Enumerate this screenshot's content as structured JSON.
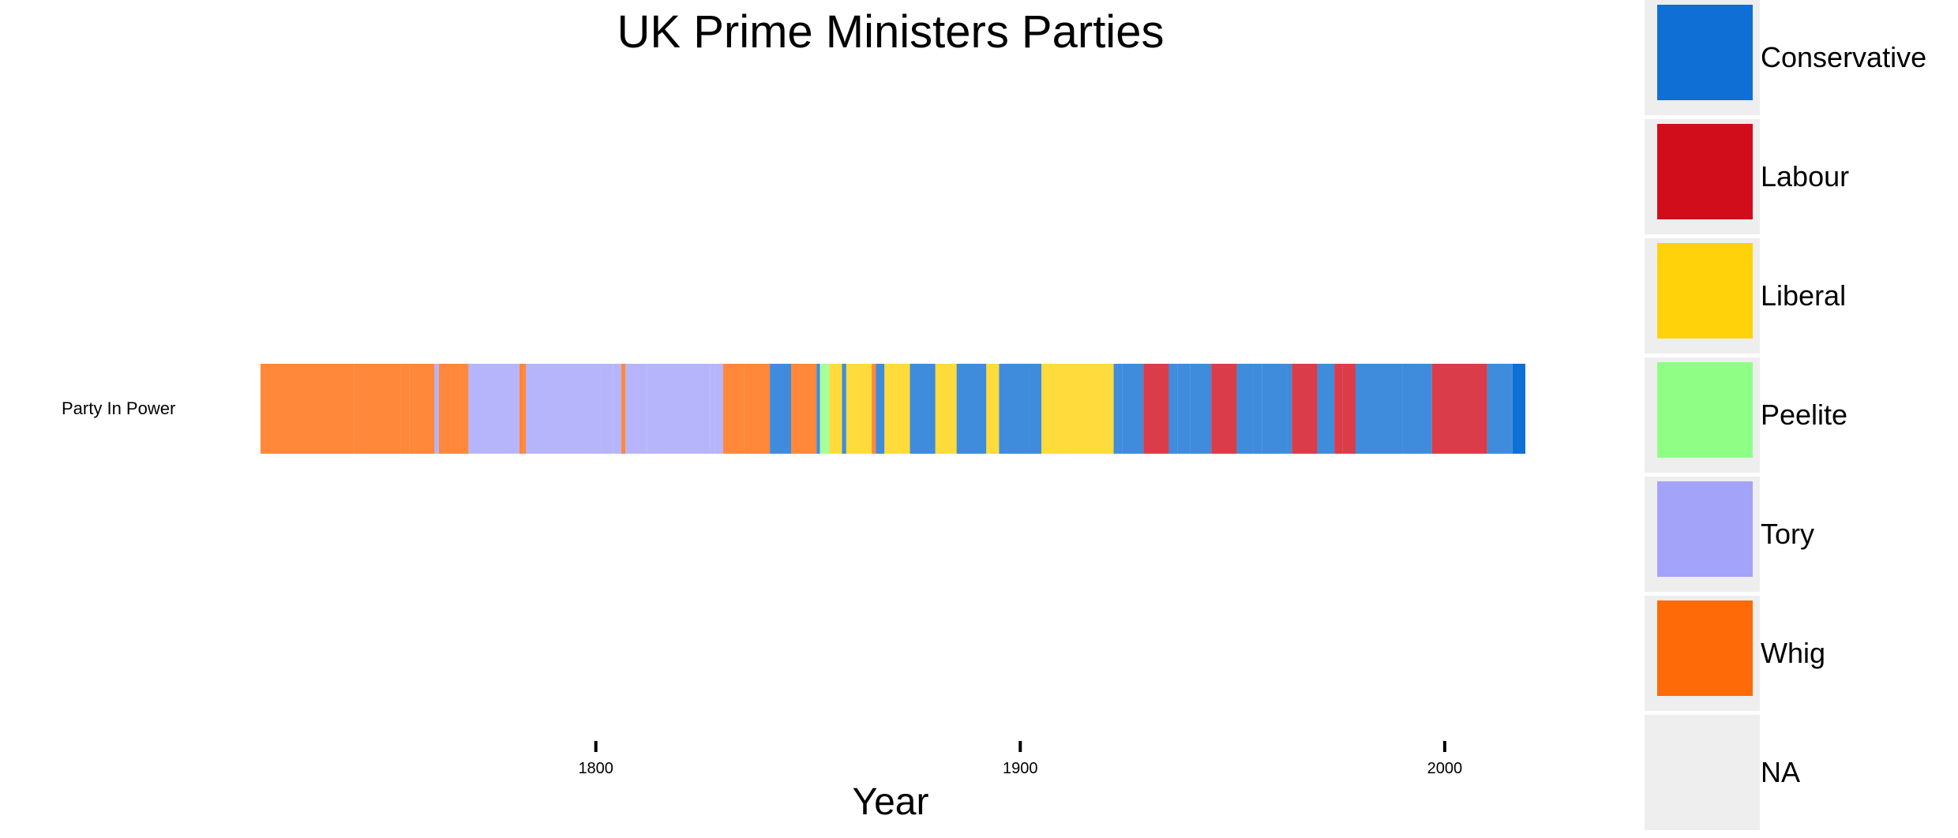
{
  "chart_data": {
    "type": "timeline",
    "title": "UK Prime Ministers Parties",
    "xlabel": "Year",
    "ylabel": "",
    "row_label": "Party In Power",
    "xlim": [
      1721,
      2019
    ],
    "x_ticks": [
      1800,
      1900,
      2000
    ],
    "x_tick_labels": [
      "1800",
      "1900",
      "2000"
    ],
    "grid": false,
    "legend_position": "right",
    "legend": [
      {
        "name": "Conservative",
        "color": "#0F6FD4"
      },
      {
        "name": "Labour",
        "color": "#D10D1C"
      },
      {
        "name": "Liberal",
        "color": "#FFD20A"
      },
      {
        "name": "Peelite",
        "color": "#8EFF84"
      },
      {
        "name": "Tory",
        "color": "#A4A3FA"
      },
      {
        "name": "Whig",
        "color": "#FF6A09"
      },
      {
        "name": "NA",
        "color": "#EEEEEE"
      }
    ],
    "bar_opacity": 0.8,
    "segments": [
      {
        "start": 1721,
        "end": 1743,
        "party": "Whig"
      },
      {
        "start": 1743,
        "end": 1754,
        "party": "Whig"
      },
      {
        "start": 1754,
        "end": 1756,
        "party": "Whig"
      },
      {
        "start": 1756,
        "end": 1757,
        "party": "Whig"
      },
      {
        "start": 1757,
        "end": 1762,
        "party": "Whig"
      },
      {
        "start": 1762,
        "end": 1763,
        "party": "Tory"
      },
      {
        "start": 1763,
        "end": 1765,
        "party": "Whig"
      },
      {
        "start": 1765,
        "end": 1766,
        "party": "Whig"
      },
      {
        "start": 1766,
        "end": 1768,
        "party": "Whig"
      },
      {
        "start": 1768,
        "end": 1770,
        "party": "Whig"
      },
      {
        "start": 1770,
        "end": 1782,
        "party": "Tory"
      },
      {
        "start": 1782,
        "end": 1783,
        "party": "Whig"
      },
      {
        "start": 1783,
        "end": 1783.5,
        "party": "Whig"
      },
      {
        "start": 1783.5,
        "end": 1801,
        "party": "Tory"
      },
      {
        "start": 1801,
        "end": 1804,
        "party": "Tory"
      },
      {
        "start": 1804,
        "end": 1806,
        "party": "Tory"
      },
      {
        "start": 1806,
        "end": 1807,
        "party": "Whig"
      },
      {
        "start": 1807,
        "end": 1809,
        "party": "Tory"
      },
      {
        "start": 1809,
        "end": 1812,
        "party": "Tory"
      },
      {
        "start": 1812,
        "end": 1827,
        "party": "Tory"
      },
      {
        "start": 1827,
        "end": 1828,
        "party": "Tory"
      },
      {
        "start": 1828,
        "end": 1830,
        "party": "Tory"
      },
      {
        "start": 1830,
        "end": 1834,
        "party": "Whig"
      },
      {
        "start": 1834,
        "end": 1835,
        "party": "Whig"
      },
      {
        "start": 1835,
        "end": 1841,
        "party": "Whig"
      },
      {
        "start": 1841,
        "end": 1846,
        "party": "Conservative"
      },
      {
        "start": 1846,
        "end": 1852,
        "party": "Whig"
      },
      {
        "start": 1852,
        "end": 1852.8,
        "party": "Conservative"
      },
      {
        "start": 1852.8,
        "end": 1855,
        "party": "Peelite"
      },
      {
        "start": 1855,
        "end": 1858,
        "party": "Liberal"
      },
      {
        "start": 1858,
        "end": 1859,
        "party": "Conservative"
      },
      {
        "start": 1859,
        "end": 1865,
        "party": "Liberal"
      },
      {
        "start": 1865,
        "end": 1866,
        "party": "Whig"
      },
      {
        "start": 1866,
        "end": 1868,
        "party": "Conservative"
      },
      {
        "start": 1868,
        "end": 1874,
        "party": "Liberal"
      },
      {
        "start": 1874,
        "end": 1880,
        "party": "Conservative"
      },
      {
        "start": 1880,
        "end": 1885,
        "party": "Liberal"
      },
      {
        "start": 1885,
        "end": 1886,
        "party": "Conservative"
      },
      {
        "start": 1886,
        "end": 1892,
        "party": "Conservative"
      },
      {
        "start": 1892,
        "end": 1895,
        "party": "Liberal"
      },
      {
        "start": 1895,
        "end": 1902,
        "party": "Conservative"
      },
      {
        "start": 1902,
        "end": 1905,
        "party": "Conservative"
      },
      {
        "start": 1905,
        "end": 1908,
        "party": "Liberal"
      },
      {
        "start": 1908,
        "end": 1916,
        "party": "Liberal"
      },
      {
        "start": 1916,
        "end": 1922,
        "party": "Liberal"
      },
      {
        "start": 1922,
        "end": 1923,
        "party": "Conservative"
      },
      {
        "start": 1923,
        "end": 1924,
        "party": "Conservative"
      },
      {
        "start": 1924,
        "end": 1929,
        "party": "Conservative"
      },
      {
        "start": 1929,
        "end": 1935,
        "party": "Labour"
      },
      {
        "start": 1935,
        "end": 1937,
        "party": "Conservative"
      },
      {
        "start": 1937,
        "end": 1940,
        "party": "Conservative"
      },
      {
        "start": 1940,
        "end": 1945,
        "party": "Conservative"
      },
      {
        "start": 1945,
        "end": 1951,
        "party": "Labour"
      },
      {
        "start": 1951,
        "end": 1955,
        "party": "Conservative"
      },
      {
        "start": 1955,
        "end": 1957,
        "party": "Conservative"
      },
      {
        "start": 1957,
        "end": 1963,
        "party": "Conservative"
      },
      {
        "start": 1963,
        "end": 1964,
        "party": "Conservative"
      },
      {
        "start": 1964,
        "end": 1970,
        "party": "Labour"
      },
      {
        "start": 1970,
        "end": 1974,
        "party": "Conservative"
      },
      {
        "start": 1974,
        "end": 1976,
        "party": "Labour"
      },
      {
        "start": 1976,
        "end": 1979,
        "party": "Labour"
      },
      {
        "start": 1979,
        "end": 1990,
        "party": "Conservative"
      },
      {
        "start": 1990,
        "end": 1997,
        "party": "Conservative"
      },
      {
        "start": 1997,
        "end": 2007,
        "party": "Labour"
      },
      {
        "start": 2007,
        "end": 2010,
        "party": "Labour"
      },
      {
        "start": 2010,
        "end": 2016,
        "party": "Conservative"
      },
      {
        "start": 2016,
        "end": 2019,
        "party": "Conservative",
        "opacity": 1.0
      }
    ]
  }
}
